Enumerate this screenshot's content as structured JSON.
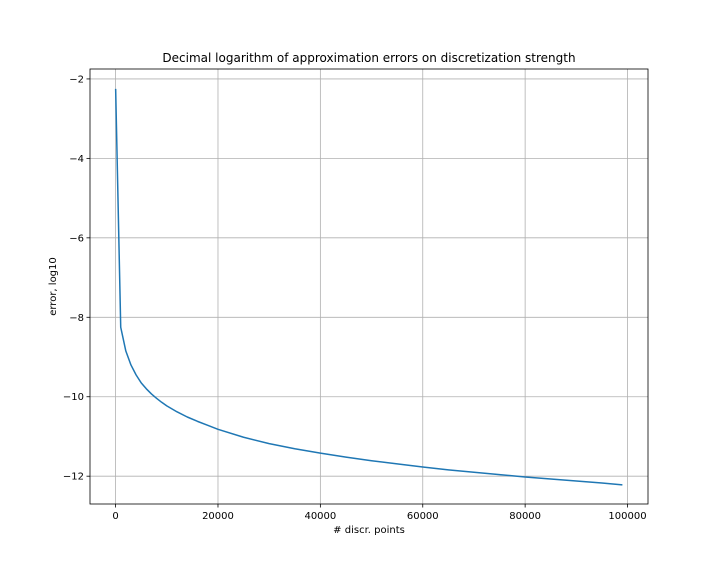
{
  "chart_data": {
    "type": "line",
    "title": "Decimal logarithm of approximation errors on discretization strength",
    "xlabel": "# discr. points",
    "ylabel": "error, log10",
    "xlim": [
      -5000,
      104000
    ],
    "ylim": [
      -12.7,
      -1.75
    ],
    "xticks": [
      0,
      20000,
      40000,
      60000,
      80000,
      100000
    ],
    "yticks": [
      -12,
      -10,
      -8,
      -6,
      -4,
      -2
    ],
    "grid": true,
    "series": [
      {
        "color": "#1f77b4",
        "x": [
          10,
          1000,
          2000,
          3000,
          4000,
          5000,
          6000,
          7000,
          8000,
          9000,
          10000,
          12000,
          14000,
          16000,
          18000,
          20000,
          25000,
          30000,
          35000,
          40000,
          45000,
          50000,
          55000,
          60000,
          65000,
          70000,
          75000,
          80000,
          85000,
          90000,
          95000,
          99000
        ],
        "y": [
          -2.25,
          -8.25,
          -8.85,
          -9.2,
          -9.45,
          -9.65,
          -9.8,
          -9.93,
          -10.04,
          -10.14,
          -10.23,
          -10.38,
          -10.51,
          -10.62,
          -10.72,
          -10.82,
          -11.02,
          -11.18,
          -11.31,
          -11.42,
          -11.52,
          -11.61,
          -11.69,
          -11.77,
          -11.84,
          -11.9,
          -11.96,
          -12.02,
          -12.07,
          -12.12,
          -12.17,
          -12.22
        ]
      }
    ]
  }
}
